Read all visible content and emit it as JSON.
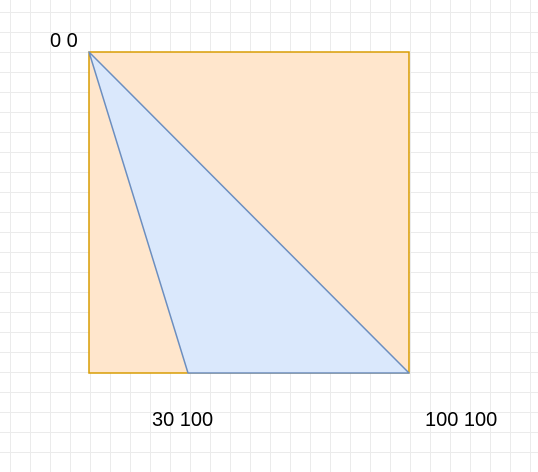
{
  "colors": {
    "square_fill": "#ffe6cc",
    "square_stroke": "#d79b00",
    "triangle_fill": "#dae8fc",
    "triangle_stroke": "#6c8ebf",
    "grid_line": "#ebebeb"
  },
  "labels": {
    "origin": "0 0",
    "bottom_mid": "30 100",
    "bottom_right": "100 100"
  }
}
